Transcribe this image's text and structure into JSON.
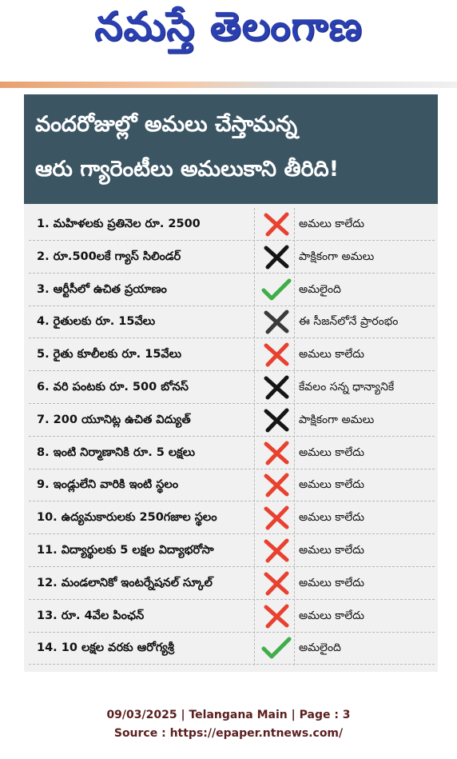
{
  "masthead": "నమస్తే తెలంగాణ",
  "headline": [
    "వందరోజుల్లో అమలు చేస్తామన్న",
    "ఆరు గ్యారెంటీలు అమలుకాని తీరిది!"
  ],
  "table": {
    "rows": [
      [
        "1. మహిళలకు ప్రతినెల రూ. 2500",
        "అమలు కాలేదు"
      ],
      [
        "2. రూ.500లకే గ్యాస్ సిలిండర్",
        "పాక్షికంగా అమలు"
      ],
      [
        "3. ఆర్టీసీలో ఉచిత ప్రయాణం",
        "అమలైంది"
      ],
      [
        "4. రైతులకు రూ. 15వేలు",
        "ఈ సీజన్‌లోనే ప్రారంభం"
      ],
      [
        "5. రైతు కూలీలకు రూ. 15వేలు",
        "అమలు కాలేదు"
      ],
      [
        "6. వరి పంటకు రూ. 500 బోనస్",
        "కేవలం సన్న ధాన్యానికే"
      ],
      [
        "7. 200 యూనిట్ల ఉచిత విద్యుత్",
        "పాక్షికంగా అమలు"
      ],
      [
        "8. ఇంటి నిర్మాణానికి రూ. 5 లక్షలు",
        "అమలు కాలేదు"
      ],
      [
        "9. ఇండ్లులేని వారికి ఇంటి స్థలం",
        "అమలు కాలేదు"
      ],
      [
        "10. ఉద్యమకారులకు 250గజాల స్థలం",
        "అమలు కాలేదు"
      ],
      [
        "11. విద్యార్థులకు 5 లక్షల విద్యాభరోసా",
        "అమలు కాలేదు"
      ],
      [
        "12. మండలానికో ఇంటర్నేషనల్ స్కూల్",
        "అమలు కాలేదు"
      ],
      [
        "13. రూ. 4వేల పింఛన్",
        "అమలు కాలేదు"
      ],
      [
        "14. 10 లక్షల వరకు ఆరోగ్యశ్రీ",
        "అమలైంది"
      ]
    ]
  },
  "footer": {
    "line1": "09/03/2025 | Telangana Main | Page : 3",
    "line2": "Source : https://epaper.ntnews.com/"
  }
}
